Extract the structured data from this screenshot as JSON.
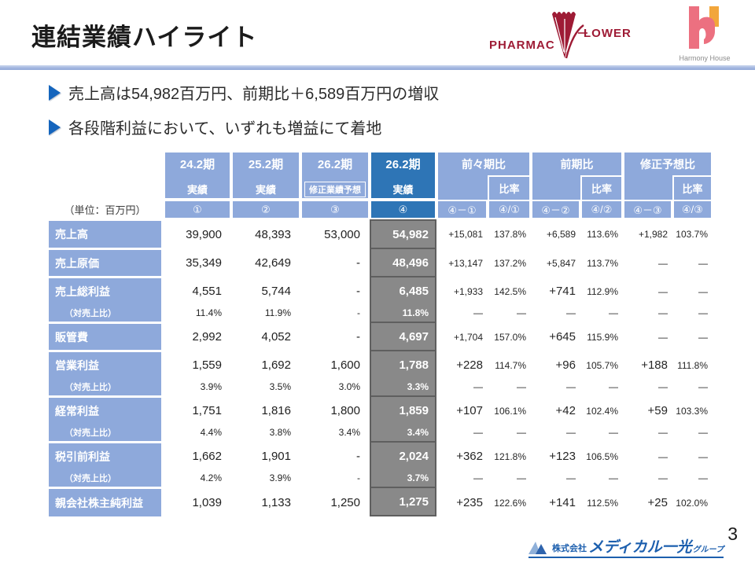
{
  "slide": {
    "title": "連結業績ハイライト",
    "page_number": "3"
  },
  "bullets": [
    {
      "text": "売上高は54,982百万円、前期比＋6,589百万円の増収"
    },
    {
      "text": "各段階利益において、いずれも増益にて着地"
    }
  ],
  "logos": {
    "pharmacy_flower": {
      "text_left": "PHARMAC",
      "text_right": "LOWER"
    },
    "harmony_house": {
      "caption": "Harmony House"
    },
    "footer": {
      "prefix": "株式会社",
      "name": "メディカル一光",
      "suffix": "グループ"
    }
  },
  "colors": {
    "accent_light_blue": "#8ea9db",
    "accent_dark_blue": "#2e75b6",
    "highlight_gray": "#898989",
    "brand_red": "#9e1b35",
    "brand_pink": "#ec7080",
    "brand_orange": "#f2a63b",
    "logo_blue": "#1c5fae"
  },
  "table": {
    "unit_label": "（単位：百万円）",
    "period_cols": [
      {
        "period": "24.2期",
        "type": "実績",
        "mark": "①",
        "boxed": false,
        "dark": false
      },
      {
        "period": "25.2期",
        "type": "実績",
        "mark": "②",
        "boxed": false,
        "dark": false
      },
      {
        "period": "26.2期",
        "type": "修正業績予想",
        "mark": "③",
        "boxed": true,
        "dark": false
      },
      {
        "period": "26.2期",
        "type": "実績",
        "mark": "④",
        "boxed": false,
        "dark": true
      }
    ],
    "compare_cols": [
      {
        "label": "前々期比",
        "sub": "比率",
        "diff_mark": "④－①",
        "ratio_mark": "④/①"
      },
      {
        "label": "前期比",
        "sub": "比率",
        "diff_mark": "④－②",
        "ratio_mark": "④/②"
      },
      {
        "label": "修正予想比",
        "sub": "比率",
        "diff_mark": "④－③",
        "ratio_mark": "④/③"
      }
    ],
    "rows": [
      {
        "label": "売上高",
        "ratio": false,
        "group_start": false,
        "c": [
          "39,900",
          "48,393",
          "53,000",
          "54,982"
        ],
        "d": [
          "+15,081",
          "137.8%",
          "+6,589",
          "113.6%",
          "+1,982",
          "103.7%"
        ],
        "big": [
          false,
          false,
          false
        ]
      },
      {
        "label": "売上原価",
        "ratio": false,
        "group_start": true,
        "c": [
          "35,349",
          "42,649",
          "-",
          "48,496"
        ],
        "d": [
          "+13,147",
          "137.2%",
          "+5,847",
          "113.7%",
          "―",
          "―"
        ],
        "big": [
          false,
          false,
          false
        ]
      },
      {
        "label": "売上総利益",
        "ratio": false,
        "group_start": true,
        "c": [
          "4,551",
          "5,744",
          "-",
          "6,485"
        ],
        "d": [
          "+1,933",
          "142.5%",
          "+741",
          "112.9%",
          "―",
          "―"
        ],
        "big": [
          false,
          true,
          false
        ]
      },
      {
        "label": "（対売上比）",
        "ratio": true,
        "group_start": false,
        "c": [
          "11.4%",
          "11.9%",
          "-",
          "11.8%"
        ],
        "d": [
          "―",
          "―",
          "―",
          "―",
          "―",
          "―"
        ],
        "big": [
          false,
          false,
          false
        ]
      },
      {
        "label": "販管費",
        "ratio": false,
        "group_start": true,
        "c": [
          "2,992",
          "4,052",
          "-",
          "4,697"
        ],
        "d": [
          "+1,704",
          "157.0%",
          "+645",
          "115.9%",
          "―",
          "―"
        ],
        "big": [
          false,
          true,
          false
        ]
      },
      {
        "label": "営業利益",
        "ratio": false,
        "group_start": true,
        "c": [
          "1,559",
          "1,692",
          "1,600",
          "1,788"
        ],
        "d": [
          "+228",
          "114.7%",
          "+96",
          "105.7%",
          "+188",
          "111.8%"
        ],
        "big": [
          true,
          true,
          true
        ]
      },
      {
        "label": "（対売上比）",
        "ratio": true,
        "group_start": false,
        "c": [
          "3.9%",
          "3.5%",
          "3.0%",
          "3.3%"
        ],
        "d": [
          "―",
          "―",
          "―",
          "―",
          "―",
          "―"
        ],
        "big": [
          false,
          false,
          false
        ]
      },
      {
        "label": "経常利益",
        "ratio": false,
        "group_start": true,
        "c": [
          "1,751",
          "1,816",
          "1,800",
          "1,859"
        ],
        "d": [
          "+107",
          "106.1%",
          "+42",
          "102.4%",
          "+59",
          "103.3%"
        ],
        "big": [
          true,
          true,
          true
        ]
      },
      {
        "label": "（対売上比）",
        "ratio": true,
        "group_start": false,
        "c": [
          "4.4%",
          "3.8%",
          "3.4%",
          "3.4%"
        ],
        "d": [
          "―",
          "―",
          "―",
          "―",
          "―",
          "―"
        ],
        "big": [
          false,
          false,
          false
        ]
      },
      {
        "label": "税引前利益",
        "ratio": false,
        "group_start": true,
        "c": [
          "1,662",
          "1,901",
          "-",
          "2,024"
        ],
        "d": [
          "+362",
          "121.8%",
          "+123",
          "106.5%",
          "―",
          "―"
        ],
        "big": [
          true,
          true,
          false
        ]
      },
      {
        "label": "（対売上比）",
        "ratio": true,
        "group_start": false,
        "c": [
          "4.2%",
          "3.9%",
          "-",
          "3.7%"
        ],
        "d": [
          "―",
          "―",
          "―",
          "―",
          "―",
          "―"
        ],
        "big": [
          false,
          false,
          false
        ]
      },
      {
        "label": "親会社株主純利益",
        "ratio": false,
        "group_start": true,
        "c": [
          "1,039",
          "1,133",
          "1,250",
          "1,275"
        ],
        "d": [
          "+235",
          "122.6%",
          "+141",
          "112.5%",
          "+25",
          "102.0%"
        ],
        "big": [
          true,
          true,
          true
        ]
      }
    ]
  }
}
